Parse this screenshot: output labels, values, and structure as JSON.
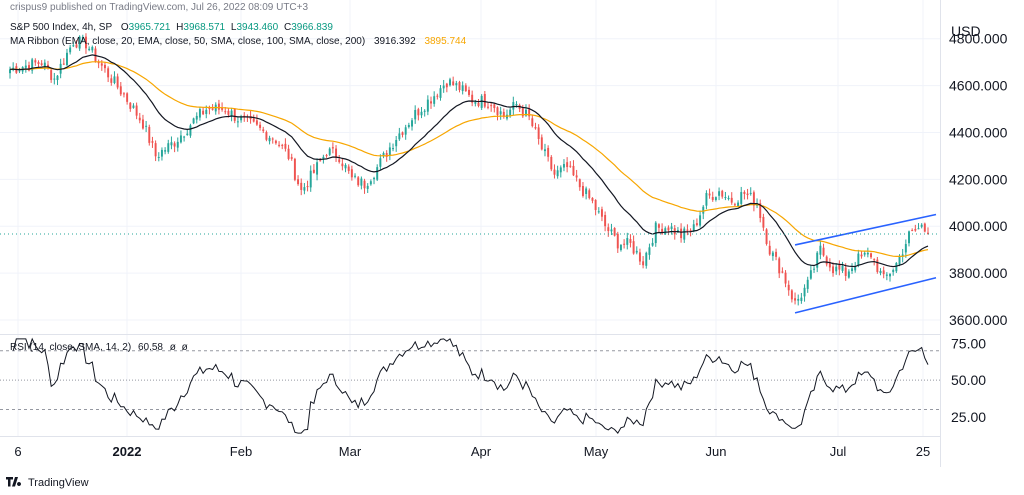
{
  "publisher_line": "crispus9 published on TradingView.com, Jul 26, 2022 08:09 UTC+3",
  "footer_brand": "TradingView",
  "legend": {
    "symbol": "S&P 500 Index, 4h, SP",
    "o_label": "O",
    "o_value": "3965.721",
    "h_label": "H",
    "h_value": "3968.571",
    "l_label": "L",
    "l_value": "3943.460",
    "c_label": "C",
    "c_value": "3966.839",
    "ma_label": "MA Ribbon (EMA, close, 20, EMA, close, 50, SMA, close, 100, SMA, close, 200)",
    "ma_value1": "3916.392",
    "ma_value2": "3895.744",
    "rsi_label": "RSI (14, close, SMA, 14, 2)",
    "rsi_value": "60.58",
    "rsi_na1": "ø",
    "rsi_na2": "ø"
  },
  "colors": {
    "up": "#26a69a",
    "down": "#ef5350",
    "ema20": "#131722",
    "ema50": "#f7a600",
    "channel": "#2962ff",
    "rsi": "#131722",
    "last_price_line": "#26a69a"
  },
  "chart_data": [
    {
      "type": "candlestick",
      "title": "S&P 500 Index, 4h, SP",
      "currency": "USD",
      "ylim": [
        3540,
        4880
      ],
      "y_ticks": [
        3600,
        3800,
        4000,
        4200,
        4400,
        4600,
        4800
      ],
      "y_tick_labels": [
        "3600.000",
        "3800.000",
        "4000.000",
        "4200.000",
        "4400.000",
        "4600.000",
        "4800.000"
      ],
      "x_tick_labels": [
        "6",
        "2022",
        "Feb",
        "Mar",
        "Apr",
        "May",
        "Jun",
        "Jul",
        "25"
      ],
      "close_path": [
        [
          0,
          4670
        ],
        [
          10,
          4700
        ],
        [
          14,
          4630
        ],
        [
          20,
          4790
        ],
        [
          24,
          4780
        ],
        [
          28,
          4700
        ],
        [
          36,
          4560
        ],
        [
          42,
          4440
        ],
        [
          46,
          4300
        ],
        [
          52,
          4360
        ],
        [
          58,
          4450
        ],
        [
          62,
          4500
        ],
        [
          68,
          4500
        ],
        [
          72,
          4460
        ],
        [
          78,
          4420
        ],
        [
          84,
          4370
        ],
        [
          88,
          4300
        ],
        [
          92,
          4150
        ],
        [
          96,
          4230
        ],
        [
          100,
          4320
        ],
        [
          104,
          4300
        ],
        [
          108,
          4200
        ],
        [
          112,
          4180
        ],
        [
          116,
          4250
        ],
        [
          122,
          4380
        ],
        [
          128,
          4480
        ],
        [
          134,
          4560
        ],
        [
          138,
          4620
        ],
        [
          142,
          4590
        ],
        [
          146,
          4540
        ],
        [
          152,
          4530
        ],
        [
          156,
          4470
        ],
        [
          160,
          4520
        ],
        [
          164,
          4460
        ],
        [
          168,
          4330
        ],
        [
          172,
          4220
        ],
        [
          176,
          4250
        ],
        [
          180,
          4170
        ],
        [
          184,
          4100
        ],
        [
          188,
          4000
        ],
        [
          192,
          3930
        ],
        [
          196,
          3920
        ],
        [
          200,
          3850
        ],
        [
          204,
          3990
        ],
        [
          208,
          4000
        ],
        [
          212,
          3960
        ],
        [
          216,
          3990
        ],
        [
          220,
          4120
        ],
        [
          224,
          4150
        ],
        [
          228,
          4110
        ],
        [
          232,
          4140
        ],
        [
          236,
          4100
        ],
        [
          240,
          3900
        ],
        [
          244,
          3800
        ],
        [
          248,
          3670
        ],
        [
          252,
          3750
        ],
        [
          256,
          3900
        ],
        [
          260,
          3820
        ],
        [
          264,
          3800
        ],
        [
          268,
          3860
        ],
        [
          272,
          3880
        ],
        [
          276,
          3770
        ],
        [
          280,
          3840
        ],
        [
          284,
          3960
        ],
        [
          288,
          4000
        ],
        [
          290,
          3967
        ]
      ],
      "overlays": [
        {
          "name": "EMA 20",
          "value": "3916.392"
        },
        {
          "name": "EMA 50",
          "value": "3895.744"
        }
      ],
      "annotations": [
        {
          "type": "channel_upper",
          "from": [
            248,
            3920
          ],
          "to": [
            290,
            4050
          ]
        },
        {
          "type": "channel_lower",
          "from": [
            248,
            3630
          ],
          "to": [
            290,
            3780
          ]
        }
      ],
      "last_price": 3966.839
    },
    {
      "type": "line",
      "title": "RSI (14, close, SMA, 14, 2)",
      "ylim": [
        12,
        80
      ],
      "y_ticks": [
        25,
        50,
        75
      ],
      "y_tick_labels": [
        "25.00",
        "50.00",
        "75.00"
      ],
      "levels": [
        30,
        50,
        70
      ],
      "last_value": 60.58
    }
  ]
}
